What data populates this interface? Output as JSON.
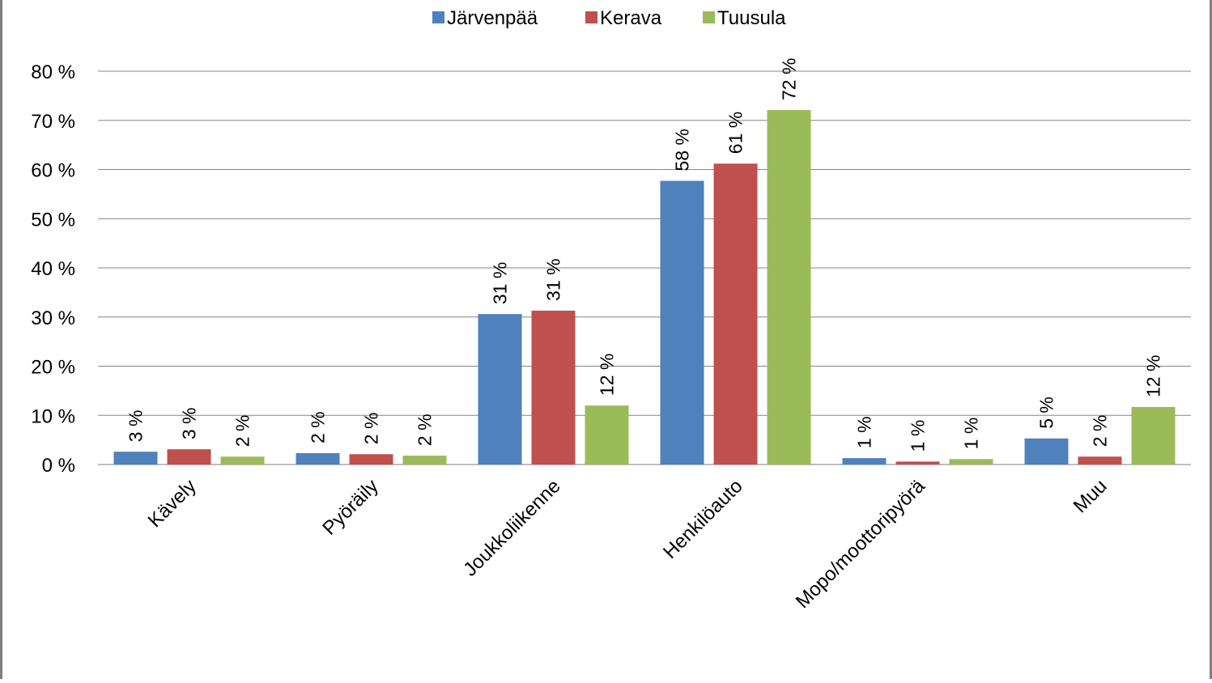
{
  "chart_data": {
    "type": "bar",
    "title": "",
    "xlabel": "",
    "ylabel": "",
    "ylim": [
      0,
      80
    ],
    "yticks": [
      0,
      10,
      20,
      30,
      40,
      50,
      60,
      70,
      80
    ],
    "ytick_labels": [
      "0 %",
      "10 %",
      "20 %",
      "30 %",
      "40 %",
      "50 %",
      "60 %",
      "70 %",
      "80 %"
    ],
    "grid": true,
    "legend_position": "top",
    "categories": [
      "Kävely",
      "Pyöräily",
      "Joukkoliikenne",
      "Henkilöauto",
      "Mopo/moottoripyörä",
      "Muu"
    ],
    "series": [
      {
        "name": "Järvenpää",
        "color": "#4f81bd",
        "values": [
          2.6,
          2.3,
          30.6,
          57.7,
          1.3,
          5.3
        ],
        "labels": [
          "3 %",
          "2 %",
          "31 %",
          "58 %",
          "1 %",
          "5 %"
        ]
      },
      {
        "name": "Kerava",
        "color": "#c0504d",
        "values": [
          3.1,
          2.1,
          31.3,
          61.2,
          0.6,
          1.6
        ],
        "labels": [
          "3 %",
          "2 %",
          "31 %",
          "61 %",
          "1 %",
          "2 %"
        ]
      },
      {
        "name": "Tuusula",
        "color": "#9bbb59",
        "values": [
          1.6,
          1.8,
          12.0,
          72.1,
          1.1,
          11.7
        ],
        "labels": [
          "2 %",
          "2 %",
          "12 %",
          "72 %",
          "1 %",
          "12 %"
        ]
      }
    ]
  }
}
